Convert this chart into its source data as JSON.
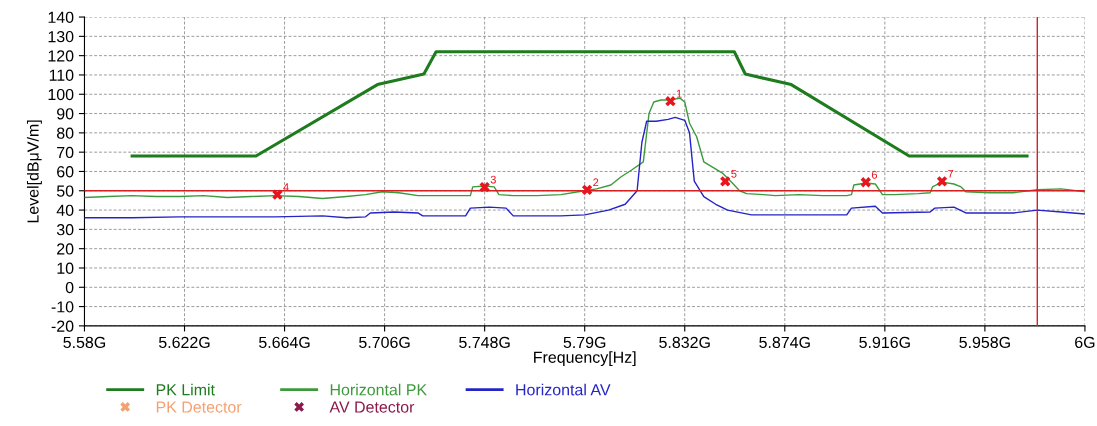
{
  "chart_data": {
    "type": "line",
    "xlabel": "Frequency[Hz]",
    "ylabel": "Level[dBμV/m]",
    "xlim": [
      5.58,
      6.0
    ],
    "ylim": [
      -20,
      140
    ],
    "xticks": [
      {
        "value": 5.58,
        "label": "5.58G"
      },
      {
        "value": 5.622,
        "label": "5.622G"
      },
      {
        "value": 5.664,
        "label": "5.664G"
      },
      {
        "value": 5.706,
        "label": "5.706G"
      },
      {
        "value": 5.748,
        "label": "5.748G"
      },
      {
        "value": 5.79,
        "label": "5.79G"
      },
      {
        "value": 5.832,
        "label": "5.832G"
      },
      {
        "value": 5.874,
        "label": "5.874G"
      },
      {
        "value": 5.916,
        "label": "5.916G"
      },
      {
        "value": 5.958,
        "label": "5.958G"
      },
      {
        "value": 6.0,
        "label": "6G"
      }
    ],
    "yticks": [
      -20,
      -10,
      0,
      10,
      20,
      30,
      40,
      50,
      60,
      70,
      80,
      90,
      100,
      110,
      120,
      130,
      140
    ],
    "grid": true,
    "legend": "bottom",
    "line_style": "solid",
    "series": [
      {
        "name": "PK Limit",
        "color": "#1e7b1e",
        "marker": "none",
        "x": [
          5.6,
          5.652,
          5.703,
          5.7225,
          5.7276,
          5.8528,
          5.8574,
          5.8767,
          5.9262,
          5.9757
        ],
        "values": [
          68,
          68,
          105,
          110.5,
          122,
          122,
          110.5,
          105,
          68,
          68
        ]
      },
      {
        "name": "Horizontal PK",
        "color": "#3c9a3c",
        "marker": "none",
        "x": [
          5.58,
          5.59,
          5.6,
          5.61,
          5.62,
          5.63,
          5.64,
          5.65,
          5.66,
          5.67,
          5.68,
          5.69,
          5.698,
          5.705,
          5.712,
          5.72,
          5.73,
          5.742,
          5.743,
          5.748,
          5.752,
          5.754,
          5.76,
          5.77,
          5.78,
          5.79,
          5.795,
          5.801,
          5.805,
          5.81,
          5.8146,
          5.817,
          5.819,
          5.822,
          5.826,
          5.83,
          5.832,
          5.834,
          5.837,
          5.84,
          5.844,
          5.848,
          5.852,
          5.855,
          5.858,
          5.865,
          5.87,
          5.88,
          5.89,
          5.9,
          5.902,
          5.903,
          5.908,
          5.912,
          5.915,
          5.92,
          5.93,
          5.935,
          5.936,
          5.94,
          5.945,
          5.948,
          5.95,
          5.96,
          5.97,
          5.98,
          5.99,
          6.0
        ],
        "values": [
          46.5,
          47,
          47.5,
          47,
          47,
          47.5,
          46.5,
          47,
          47.5,
          47,
          46,
          47,
          48,
          49.5,
          49,
          47.5,
          47.5,
          47.5,
          52,
          52.5,
          52,
          48,
          47.5,
          47.5,
          48,
          50,
          51,
          53,
          57,
          61,
          65,
          90,
          96,
          97,
          97,
          98,
          96,
          85,
          78,
          65,
          62,
          59,
          54,
          50,
          48.5,
          48,
          47.5,
          48,
          47.5,
          47.5,
          48,
          53,
          54,
          53.5,
          48,
          48,
          48.5,
          49,
          52,
          54.5,
          53.5,
          52,
          49.5,
          49,
          49,
          50.5,
          51,
          49.5
        ]
      },
      {
        "name": "Horizontal AV",
        "color": "#2424c8",
        "marker": "none",
        "x": [
          5.58,
          5.6,
          5.62,
          5.64,
          5.66,
          5.68,
          5.69,
          5.698,
          5.7,
          5.71,
          5.72,
          5.722,
          5.74,
          5.742,
          5.75,
          5.757,
          5.76,
          5.78,
          5.79,
          5.8,
          5.807,
          5.812,
          5.814,
          5.816,
          5.82,
          5.825,
          5.828,
          5.832,
          5.834,
          5.836,
          5.84,
          5.845,
          5.85,
          5.86,
          5.88,
          5.9,
          5.902,
          5.912,
          5.915,
          5.935,
          5.937,
          5.945,
          5.95,
          5.97,
          5.98,
          5.99,
          6.0
        ],
        "values": [
          36,
          36,
          36.5,
          36.5,
          36.5,
          37,
          36,
          36.5,
          38.5,
          39,
          38.5,
          37,
          37,
          41,
          41.5,
          41,
          37,
          37,
          37.5,
          40,
          43,
          50,
          75,
          86,
          86,
          87,
          88,
          86.5,
          80,
          55,
          47,
          43,
          40,
          37.5,
          37.5,
          37.5,
          41,
          42,
          38.5,
          39,
          41,
          41.5,
          38.5,
          38.5,
          40,
          39,
          38
        ]
      },
      {
        "color": "#e8141e",
        "type": "scatter",
        "marker": "cross",
        "x": [
          5.826,
          5.791,
          5.748,
          5.661,
          5.849,
          5.908,
          5.94
        ],
        "values": [
          96.4,
          50.5,
          51.9,
          48.0,
          54.9,
          54.4,
          54.9
        ]
      },
      {
        "name": "PK Detector",
        "color": "#f4a070",
        "type": "scatter",
        "marker": "cross"
      },
      {
        "name": "AV Detector",
        "color": "#8b1a4a",
        "type": "scatter",
        "marker": "cross"
      }
    ],
    "ref_lines": [
      {
        "axis": "y",
        "value": 50,
        "color": "#d42020"
      },
      {
        "axis": "x",
        "value": 5.98,
        "color": "#d42020"
      }
    ],
    "annotations": [
      {
        "text": "1",
        "x": 5.826,
        "y": 96.4
      },
      {
        "text": "2",
        "x": 5.791,
        "y": 50.5
      },
      {
        "text": "3",
        "x": 5.748,
        "y": 51.9
      },
      {
        "text": "4",
        "x": 5.661,
        "y": 48.0
      },
      {
        "text": "5",
        "x": 5.849,
        "y": 54.9
      },
      {
        "text": "6",
        "x": 5.908,
        "y": 54.4
      },
      {
        "text": "7",
        "x": 5.94,
        "y": 54.9
      }
    ]
  }
}
